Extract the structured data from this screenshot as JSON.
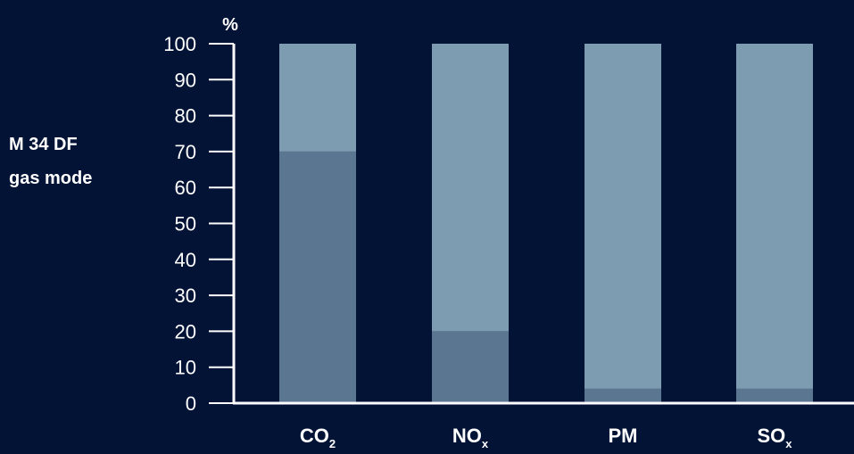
{
  "colors": {
    "background": "#031336",
    "upper_bar": "#7d9cb2",
    "lower_bar": "#5a7690",
    "text": "#ffffff",
    "axis": "#ffffff"
  },
  "side_label": {
    "line1": "M 34 DF",
    "line2": "gas mode"
  },
  "chart_data": {
    "type": "bar",
    "stacked": true,
    "ylabel": "%",
    "ylim": [
      0,
      100
    ],
    "yticks": [
      0,
      10,
      20,
      30,
      40,
      50,
      60,
      70,
      80,
      90,
      100
    ],
    "categories": [
      {
        "base": "CO",
        "sub": "2"
      },
      {
        "base": "NO",
        "sub": "x"
      },
      {
        "base": "PM",
        "sub": ""
      },
      {
        "base": "SO",
        "sub": "x"
      }
    ],
    "series": [
      {
        "values": [
          70,
          20,
          4,
          4
        ],
        "color": "#5a7690"
      },
      {
        "values": [
          30,
          80,
          96,
          96
        ],
        "color": "#7d9cb2"
      }
    ],
    "grid": false,
    "legend": "none"
  }
}
